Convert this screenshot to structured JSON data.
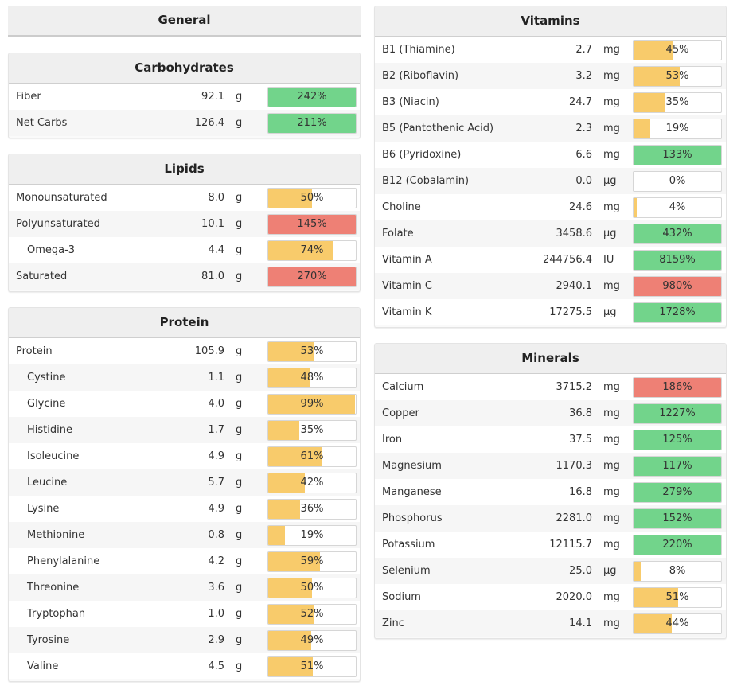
{
  "colors": {
    "low": "#f8cb6b",
    "ok": "#72d48b",
    "high": "#ee8075"
  },
  "left_panels": [
    {
      "id": "general",
      "title": "General",
      "rows": []
    },
    {
      "id": "carbohydrates",
      "title": "Carbohydrates",
      "rows": [
        {
          "name": "Fiber",
          "amount": "92.1",
          "unit": "g",
          "pct": 242,
          "pct_label": "242%",
          "status": "ok"
        },
        {
          "name": "Net Carbs",
          "amount": "126.4",
          "unit": "g",
          "pct": 211,
          "pct_label": "211%",
          "status": "ok"
        }
      ]
    },
    {
      "id": "lipids",
      "title": "Lipids",
      "rows": [
        {
          "name": "Monounsaturated",
          "amount": "8.0",
          "unit": "g",
          "pct": 50,
          "pct_label": "50%",
          "status": "low"
        },
        {
          "name": "Polyunsaturated",
          "amount": "10.1",
          "unit": "g",
          "pct": 145,
          "pct_label": "145%",
          "status": "high"
        },
        {
          "name": "Omega-3",
          "amount": "4.4",
          "unit": "g",
          "pct": 74,
          "pct_label": "74%",
          "status": "low",
          "sub": true
        },
        {
          "name": "Saturated",
          "amount": "81.0",
          "unit": "g",
          "pct": 270,
          "pct_label": "270%",
          "status": "high"
        }
      ]
    },
    {
      "id": "protein",
      "title": "Protein",
      "rows": [
        {
          "name": "Protein",
          "amount": "105.9",
          "unit": "g",
          "pct": 53,
          "pct_label": "53%",
          "status": "low"
        },
        {
          "name": "Cystine",
          "amount": "1.1",
          "unit": "g",
          "pct": 48,
          "pct_label": "48%",
          "status": "low",
          "sub": true
        },
        {
          "name": "Glycine",
          "amount": "4.0",
          "unit": "g",
          "pct": 99,
          "pct_label": "99%",
          "status": "low",
          "sub": true
        },
        {
          "name": "Histidine",
          "amount": "1.7",
          "unit": "g",
          "pct": 35,
          "pct_label": "35%",
          "status": "low",
          "sub": true
        },
        {
          "name": "Isoleucine",
          "amount": "4.9",
          "unit": "g",
          "pct": 61,
          "pct_label": "61%",
          "status": "low",
          "sub": true
        },
        {
          "name": "Leucine",
          "amount": "5.7",
          "unit": "g",
          "pct": 42,
          "pct_label": "42%",
          "status": "low",
          "sub": true
        },
        {
          "name": "Lysine",
          "amount": "4.9",
          "unit": "g",
          "pct": 36,
          "pct_label": "36%",
          "status": "low",
          "sub": true
        },
        {
          "name": "Methionine",
          "amount": "0.8",
          "unit": "g",
          "pct": 19,
          "pct_label": "19%",
          "status": "low",
          "sub": true
        },
        {
          "name": "Phenylalanine",
          "amount": "4.2",
          "unit": "g",
          "pct": 59,
          "pct_label": "59%",
          "status": "low",
          "sub": true
        },
        {
          "name": "Threonine",
          "amount": "3.6",
          "unit": "g",
          "pct": 50,
          "pct_label": "50%",
          "status": "low",
          "sub": true
        },
        {
          "name": "Tryptophan",
          "amount": "1.0",
          "unit": "g",
          "pct": 52,
          "pct_label": "52%",
          "status": "low",
          "sub": true
        },
        {
          "name": "Tyrosine",
          "amount": "2.9",
          "unit": "g",
          "pct": 49,
          "pct_label": "49%",
          "status": "low",
          "sub": true
        },
        {
          "name": "Valine",
          "amount": "4.5",
          "unit": "g",
          "pct": 51,
          "pct_label": "51%",
          "status": "low",
          "sub": true
        }
      ]
    }
  ],
  "right_panels": [
    {
      "id": "vitamins",
      "title": "Vitamins",
      "rows": [
        {
          "name": "B1 (Thiamine)",
          "amount": "2.7",
          "unit": "mg",
          "pct": 45,
          "pct_label": "45%",
          "status": "low"
        },
        {
          "name": "B2 (Riboflavin)",
          "amount": "3.2",
          "unit": "mg",
          "pct": 53,
          "pct_label": "53%",
          "status": "low"
        },
        {
          "name": "B3 (Niacin)",
          "amount": "24.7",
          "unit": "mg",
          "pct": 35,
          "pct_label": "35%",
          "status": "low"
        },
        {
          "name": "B5 (Pantothenic Acid)",
          "amount": "2.3",
          "unit": "mg",
          "pct": 19,
          "pct_label": "19%",
          "status": "low"
        },
        {
          "name": "B6 (Pyridoxine)",
          "amount": "6.6",
          "unit": "mg",
          "pct": 133,
          "pct_label": "133%",
          "status": "ok"
        },
        {
          "name": "B12 (Cobalamin)",
          "amount": "0.0",
          "unit": "µg",
          "pct": 0,
          "pct_label": "0%",
          "status": "low"
        },
        {
          "name": "Choline",
          "amount": "24.6",
          "unit": "mg",
          "pct": 4,
          "pct_label": "4%",
          "status": "low"
        },
        {
          "name": "Folate",
          "amount": "3458.6",
          "unit": "µg",
          "pct": 432,
          "pct_label": "432%",
          "status": "ok"
        },
        {
          "name": "Vitamin A",
          "amount": "244756.4",
          "unit": "IU",
          "pct": 8159,
          "pct_label": "8159%",
          "status": "ok"
        },
        {
          "name": "Vitamin C",
          "amount": "2940.1",
          "unit": "mg",
          "pct": 980,
          "pct_label": "980%",
          "status": "high"
        },
        {
          "name": "Vitamin K",
          "amount": "17275.5",
          "unit": "µg",
          "pct": 1728,
          "pct_label": "1728%",
          "status": "ok"
        }
      ]
    },
    {
      "id": "minerals",
      "title": "Minerals",
      "rows": [
        {
          "name": "Calcium",
          "amount": "3715.2",
          "unit": "mg",
          "pct": 186,
          "pct_label": "186%",
          "status": "high"
        },
        {
          "name": "Copper",
          "amount": "36.8",
          "unit": "mg",
          "pct": 1227,
          "pct_label": "1227%",
          "status": "ok"
        },
        {
          "name": "Iron",
          "amount": "37.5",
          "unit": "mg",
          "pct": 125,
          "pct_label": "125%",
          "status": "ok"
        },
        {
          "name": "Magnesium",
          "amount": "1170.3",
          "unit": "mg",
          "pct": 117,
          "pct_label": "117%",
          "status": "ok"
        },
        {
          "name": "Manganese",
          "amount": "16.8",
          "unit": "mg",
          "pct": 279,
          "pct_label": "279%",
          "status": "ok"
        },
        {
          "name": "Phosphorus",
          "amount": "2281.0",
          "unit": "mg",
          "pct": 152,
          "pct_label": "152%",
          "status": "ok"
        },
        {
          "name": "Potassium",
          "amount": "12115.7",
          "unit": "mg",
          "pct": 220,
          "pct_label": "220%",
          "status": "ok"
        },
        {
          "name": "Selenium",
          "amount": "25.0",
          "unit": "µg",
          "pct": 8,
          "pct_label": "8%",
          "status": "low"
        },
        {
          "name": "Sodium",
          "amount": "2020.0",
          "unit": "mg",
          "pct": 51,
          "pct_label": "51%",
          "status": "low"
        },
        {
          "name": "Zinc",
          "amount": "14.1",
          "unit": "mg",
          "pct": 44,
          "pct_label": "44%",
          "status": "low"
        }
      ]
    }
  ]
}
